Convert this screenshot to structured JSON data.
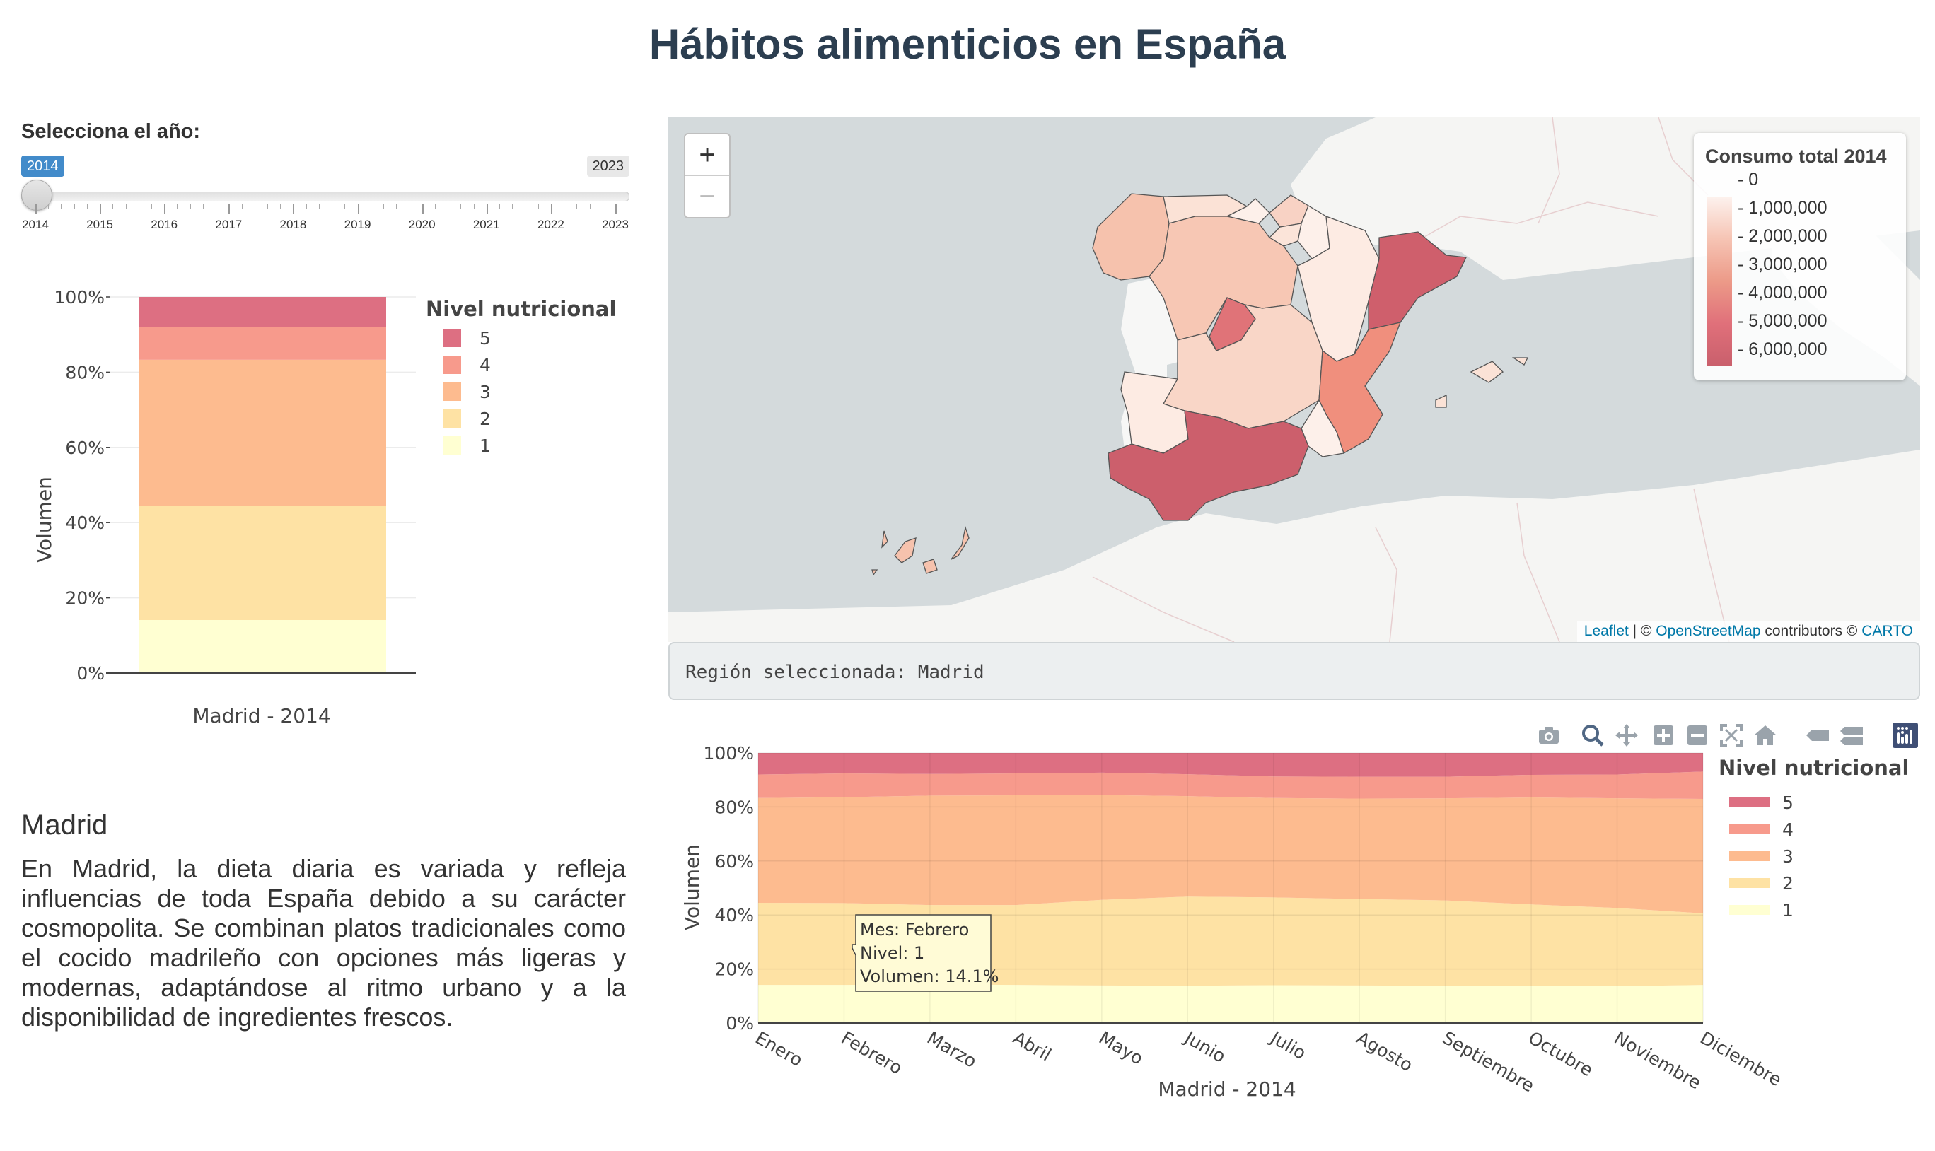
{
  "app": {
    "title": "Hábitos alimenticios en España"
  },
  "slider": {
    "label": "Selecciona el año:",
    "value": "2014",
    "max_label": "2023",
    "min": 2014,
    "max": 2023,
    "current": 2014,
    "ticks": [
      "2014",
      "2015",
      "2016",
      "2017",
      "2018",
      "2019",
      "2020",
      "2021",
      "2022",
      "2023"
    ]
  },
  "region_panel": {
    "heading": "Madrid",
    "description": "En Madrid, la dieta diaria es variada y refleja influencias de toda España debido a su carácter cosmopolita. Se combinan platos tradicionales como el cocido madrileño con opciones más ligeras y modernas, adaptándose al ritmo urbano y a la disponibilidad de ingredientes frescos."
  },
  "map": {
    "zoom_in": "+",
    "zoom_out": "−",
    "legend_title": "Consumo total 2014",
    "legend_labels": [
      "0",
      "1,000,000",
      "2,000,000",
      "3,000,000",
      "4,000,000",
      "5,000,000",
      "6,000,000"
    ],
    "attribution_leaflet": "Leaflet",
    "attribution_sep": " | © ",
    "attribution_osm": "OpenStreetMap",
    "attribution_mid": " contributors © ",
    "attribution_carto": "CARTO",
    "selected_text": "Región seleccionada: Madrid"
  },
  "colors": {
    "level_5": "#dd6f82",
    "level_4": "#f79a8c",
    "level_3": "#fdbb8f",
    "level_2": "#fee2a4",
    "level_1": "#ffffd2"
  },
  "toolbar_icons": [
    "camera-icon",
    "zoom-icon",
    "pan-icon",
    "zoom-in-icon",
    "zoom-out-icon",
    "autoscale-icon",
    "reset-axes-icon",
    "hover-closest-icon",
    "hover-compare-icon",
    "plotly-logo-icon"
  ],
  "chart_data": [
    {
      "type": "bar",
      "stacked": true,
      "normalized": true,
      "categories": [
        "Madrid - 2014"
      ],
      "xlabel": "Madrid - 2014",
      "ylabel": "Volumen",
      "ylim": [
        0,
        100
      ],
      "yticks": [
        "0%",
        "20%",
        "40%",
        "60%",
        "80%",
        "100%"
      ],
      "legend_title": "Nivel nutricional",
      "legend_position": "right",
      "series": [
        {
          "name": "1",
          "values": [
            14.1
          ]
        },
        {
          "name": "2",
          "values": [
            30.4
          ]
        },
        {
          "name": "3",
          "values": [
            38.8
          ]
        },
        {
          "name": "4",
          "values": [
            8.7
          ]
        },
        {
          "name": "5",
          "values": [
            8.0
          ]
        }
      ]
    },
    {
      "type": "area",
      "stacked": true,
      "normalized": true,
      "categories": [
        "Enero",
        "Febrero",
        "Marzo",
        "Abril",
        "Mayo",
        "Junio",
        "Julio",
        "Agosto",
        "Septiembre",
        "Octubre",
        "Noviembre",
        "Diciembre"
      ],
      "xlabel": "Madrid - 2014",
      "ylabel": "Volumen",
      "ylim": [
        0,
        100
      ],
      "yticks": [
        "0%",
        "20%",
        "40%",
        "60%",
        "80%",
        "100%"
      ],
      "legend_title": "Nivel nutricional",
      "legend_position": "right",
      "series": [
        {
          "name": "1",
          "values": [
            14.1,
            14.1,
            14.3,
            14.1,
            13.9,
            13.8,
            14.0,
            13.9,
            13.8,
            13.7,
            13.6,
            14.1
          ]
        },
        {
          "name": "2",
          "values": [
            30.4,
            30.3,
            29.4,
            29.6,
            31.7,
            33.0,
            32.5,
            32.0,
            31.6,
            30.2,
            29.0,
            26.5
          ]
        },
        {
          "name": "3",
          "values": [
            38.8,
            39.2,
            40.5,
            40.6,
            38.8,
            37.2,
            36.8,
            37.2,
            37.8,
            39.6,
            40.6,
            42.4
          ]
        },
        {
          "name": "4",
          "values": [
            8.7,
            8.8,
            8.0,
            8.1,
            8.3,
            8.1,
            8.0,
            8.1,
            8.0,
            8.4,
            8.8,
            10.1
          ]
        },
        {
          "name": "5",
          "values": [
            8.0,
            7.6,
            7.8,
            7.6,
            7.3,
            7.9,
            8.7,
            8.8,
            8.8,
            8.1,
            8.0,
            6.9
          ]
        }
      ],
      "tooltip": {
        "mes": "Mes: Febrero",
        "nivel": "Nivel: 1",
        "volumen": "Volumen: 14.1%"
      }
    }
  ]
}
